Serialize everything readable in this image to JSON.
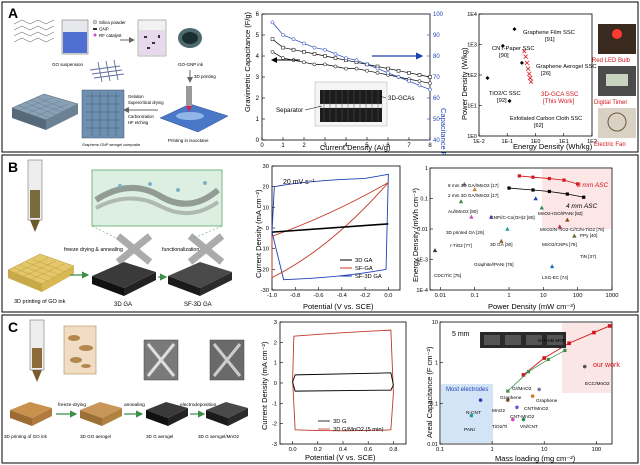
{
  "panels": {
    "A": {
      "label": "A",
      "process": {
        "go_suspension": "GO suspension",
        "legend": [
          "Silica powder",
          "GNP",
          "RF catalyst"
        ],
        "go_gnp_ink": "GO-GNP ink",
        "printing_3d": "3D printing",
        "printing_in_isooctane": "Printing in isooctane",
        "steps": [
          "Gelation",
          "Supercritical drying",
          "Carbonization",
          "HF etching"
        ],
        "aerogel_caption": "Graphene-GNP aerogel composite"
      },
      "chart1": {
        "ylabel": "Gravimetric Capacitance (F/g)",
        "y2label": "Capacitance Retention (%)",
        "xlabel": "Current Density (A/g)",
        "separator": "Separator",
        "device": "3D-GCAs"
      },
      "chart2": {
        "ylabel": "Power Density (W/kg)",
        "xlabel": "Energy Density (Wh/kg)",
        "annotations": [
          {
            "text": "Graphene Film SSC",
            "ref": "[91]"
          },
          {
            "text": "CNT-Paper SSC",
            "ref": "[90]"
          },
          {
            "text": "Graphene Aerogel SSC",
            "ref": "[26]"
          },
          {
            "text": "TiO2/C SSC",
            "ref": "[92]"
          },
          {
            "text": "3D-GCA SSC",
            "ref": "[This Work]"
          },
          {
            "text": "Exfoliated Carbon Cloth SSC",
            "ref": "[62]"
          }
        ],
        "photos": [
          "Red LED Bulb",
          "Digital Timer",
          "Electric Fan"
        ]
      }
    },
    "B": {
      "label": "B",
      "process": {
        "go_ink": "3D printing of GO ink",
        "step1": "freeze drying & annealing",
        "step2": "functionalization",
        "ga": "3D GA",
        "sfga": "SF-3D GA"
      },
      "chart1": {
        "ylabel": "Current Density (mA cm⁻²)",
        "xlabel": "Potential (V vs. SCE)",
        "scanrate": "20 mV s⁻¹",
        "legend": [
          "3D GA",
          "SF-GA",
          "SF-3D GA"
        ]
      },
      "chart2": {
        "ylabel": "Energy Density (mWh cm⁻³)",
        "xlabel": "Power Density (mW cm⁻³)",
        "asc8": "8 mm ASC",
        "asc4": "4 mm ASC",
        "refs": [
          "8 mm 3D GA//MnO2 [17]",
          "2 mm 3D GA//MnO2 [17]",
          "Au//MnO2 [80]",
          "GNP//C-Co(OH)2 [80]",
          "3D printed GA [29]",
          "r-TiO2 [77]",
          "CDC/TiC [75]",
          "3D GA [30]",
          "Graphite//PANI [76]",
          "MnO2-rGO//PANI [82]",
          "MnO2/N-TiO2-C//C/N-TiO2 [78]",
          "PPy [40]",
          "MnO2/CNPs [79]",
          "TiN [37]",
          "LSG-EC [74]"
        ]
      }
    },
    "C": {
      "label": "C",
      "process": {
        "step1": "freeze-drying",
        "step2": "annealing",
        "step3": "electrodeposition",
        "s1": "3D printing of GO ink",
        "s2": "3D GO aerogel",
        "s3": "3D G aerogel",
        "s4": "3D G aerogel/MnO2"
      },
      "chart1": {
        "ylabel": "Current Density (mA cm⁻²)",
        "xlabel": "Potential (V vs. SCE)",
        "legend": [
          "3D G",
          "3D G/MnO2 (5 min)"
        ]
      },
      "chart2": {
        "ylabel": "Areal Capacitance (F cm⁻²)",
        "xlabel": "Mass loading (mg cm⁻²)",
        "scale": "5 mm",
        "most": "Most electrodes",
        "our": "our work",
        "labels": [
          "Ni-HAB MOF",
          "ECC/MnO2",
          "Graphene",
          "CNT/MnO2",
          "N-CNT",
          "PANI",
          "MnO2",
          "CNT-MnO2",
          "TiO2/Ti",
          "VN/CNT",
          "Graphene",
          "G//MnO2"
        ]
      }
    }
  },
  "chart_data": [
    {
      "type": "line",
      "title": "",
      "xlabel": "Current Density (A/g)",
      "ylabel": "Gravimetric Capacitance (F/g)",
      "y2label": "Capacitance Retention (%)",
      "xlim": [
        0,
        8
      ],
      "ylim": [
        0,
        6
      ],
      "y2lim": [
        40,
        100
      ],
      "x": [
        0.5,
        1,
        1.5,
        2,
        2.5,
        3,
        3.5,
        4,
        4.5,
        5,
        5.5,
        6,
        6.5,
        7,
        7.5,
        8
      ],
      "series": [
        {
          "values": [
            4.8,
            4.4,
            4.3,
            4.2,
            4.1,
            4.0,
            3.9,
            3.8,
            3.7,
            3.6,
            3.5,
            3.4,
            3.3,
            3.2,
            3.1,
            3.0
          ]
        },
        {
          "values": [
            4.2,
            3.9,
            3.8,
            3.7,
            3.6,
            3.6,
            3.5,
            3.4,
            3.4,
            3.3,
            3.2,
            3.1,
            3.0,
            2.9,
            2.8,
            2.7
          ]
        },
        {
          "axis": "right",
          "values": [
            96,
            90,
            88,
            86,
            84,
            83,
            81,
            79,
            78,
            76,
            74,
            72,
            70,
            68,
            66,
            64
          ]
        }
      ]
    },
    {
      "type": "scatter",
      "xlabel": "Energy Density (Wh/kg)",
      "ylabel": "Power Density (W/kg)",
      "xscale": "log",
      "yscale": "log",
      "xlim": [
        0.01,
        100
      ],
      "ylim": [
        1,
        10000
      ],
      "x": [
        0.4,
        0.45,
        0.5,
        0.55,
        0.6,
        0.65,
        0.7
      ],
      "series": [
        {
          "values": [
            600,
            400,
            250,
            160,
            110,
            80,
            60
          ]
        }
      ]
    },
    {
      "type": "line",
      "xlabel": "Potential (V vs. SCE)",
      "ylabel": "Current Density (mA cm⁻²)",
      "xlim": [
        -1.0,
        0.1
      ],
      "ylim": [
        -30,
        30
      ],
      "series": [
        {
          "name": "3D GA",
          "x": [
            -1.0,
            0.0
          ],
          "values": [
            -2,
            2
          ]
        },
        {
          "name": "SF-GA"
        },
        {
          "name": "SF-3D GA"
        }
      ]
    },
    {
      "type": "scatter",
      "xlabel": "Power Density (mW cm⁻³)",
      "ylabel": "Energy Density (mWh cm⁻³)",
      "xscale": "log",
      "yscale": "log",
      "xlim": [
        0.005,
        1000
      ],
      "ylim": [
        0.0001,
        1
      ]
    },
    {
      "type": "line",
      "xlabel": "Potential (V vs. SCE)",
      "ylabel": "Current Density (mA cm⁻²)",
      "xlim": [
        -0.1,
        0.9
      ],
      "ylim": [
        -3,
        3
      ],
      "series": [
        {
          "name": "3D G"
        },
        {
          "name": "3D G/MnO2 (5 min)"
        }
      ]
    },
    {
      "type": "scatter",
      "xlabel": "Mass loading (mg cm⁻²)",
      "ylabel": "Areal Capacitance (F cm⁻²)",
      "xscale": "log",
      "yscale": "log",
      "xlim": [
        0.1,
        200
      ],
      "ylim": [
        0.01,
        10
      ]
    }
  ]
}
